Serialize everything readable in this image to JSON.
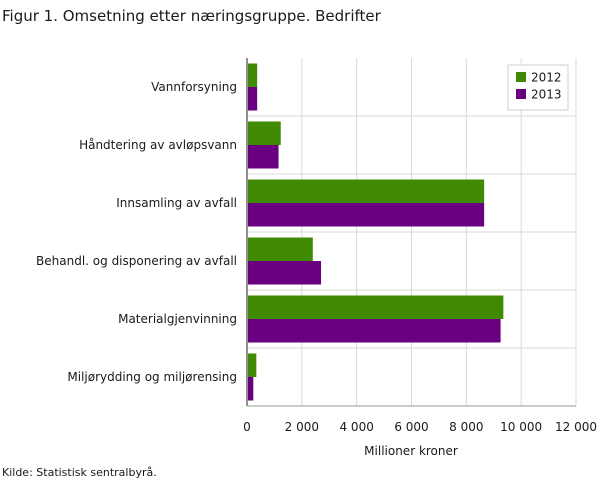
{
  "title": "Figur 1. Omsetning etter næringsgruppe. Bedrifter",
  "source": "Kilde: Statistisk sentralbyrå.",
  "chart_data": {
    "type": "bar",
    "orientation": "horizontal",
    "title": "Figur 1. Omsetning etter næringsgruppe. Bedrifter",
    "xlabel": "Millioner  kroner",
    "ylabel": "",
    "categories": [
      "Vannforsyning",
      "Håndtering av avløpsvann",
      "Innsamling av avfall",
      "Behandl. og disponering av avfall",
      "Materialgjenvinning",
      "Miljørydding og miljørensing"
    ],
    "series": [
      {
        "name": "2012",
        "color": "#3f8a00",
        "values": [
          370,
          1230,
          8650,
          2400,
          9350,
          340
        ]
      },
      {
        "name": "2013",
        "color": "#6a007f",
        "values": [
          370,
          1150,
          8650,
          2700,
          9250,
          230
        ]
      }
    ],
    "xlim": [
      0,
      12000
    ],
    "xticks": [
      0,
      2000,
      4000,
      6000,
      8000,
      10000,
      12000
    ],
    "xtick_labels": [
      "0",
      "2 000",
      "4 000",
      "6 000",
      "8 000",
      "10 000",
      "12 000"
    ],
    "grid": true,
    "legend": "top-right"
  }
}
